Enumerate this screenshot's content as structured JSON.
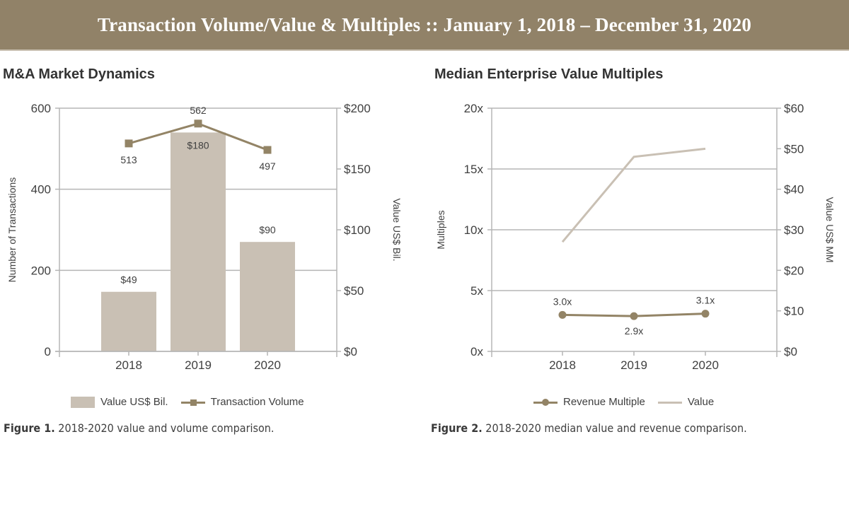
{
  "banner": {
    "title": "Transaction Volume/Value & Multiples  ::  January 1, 2018 – December 31, 2020"
  },
  "colors": {
    "banner": "#918268",
    "primary": "#938466",
    "secondary": "#c9c0b4",
    "grid": "#b5b5b5"
  },
  "chart_data": [
    {
      "type": "bar",
      "title": "M&A Market Dynamics",
      "categories": [
        "2018",
        "2019",
        "2020"
      ],
      "series": [
        {
          "name": "Value US$ Bil.",
          "type": "bar",
          "axis": "right",
          "values": [
            49,
            180,
            90
          ],
          "labels": [
            "$49",
            "$180",
            "$90"
          ]
        },
        {
          "name": "Transaction Volume",
          "type": "line",
          "marker": "square",
          "axis": "left",
          "values": [
            513,
            562,
            497
          ],
          "labels": [
            "513",
            "562",
            "497"
          ]
        }
      ],
      "left_axis": {
        "label": "Number of Transactions",
        "ylim": [
          0,
          600
        ],
        "ticks": [
          "0",
          "200",
          "400",
          "600"
        ],
        "tick_values": [
          0,
          200,
          400,
          600
        ]
      },
      "right_axis": {
        "label": "Value US$ Bil.",
        "ylim": [
          0,
          200
        ],
        "ticks": [
          "$0",
          "$50",
          "$100",
          "$150",
          "$200"
        ],
        "tick_values": [
          0,
          50,
          100,
          150,
          200
        ]
      },
      "grid": true,
      "legend": "bottom",
      "caption_bold": "Figure 1.",
      "caption": " 2018-2020 value and volume comparison."
    },
    {
      "type": "line",
      "title": "Median Enterprise Value Multiples",
      "categories": [
        "2018",
        "2019",
        "2020"
      ],
      "series": [
        {
          "name": "Revenue Multiple",
          "type": "line",
          "marker": "circle",
          "axis": "left",
          "values": [
            3.0,
            2.9,
            3.1
          ],
          "labels": [
            "3.0x",
            "2.9x",
            "3.1x"
          ]
        },
        {
          "name": "Value",
          "type": "line",
          "axis": "right",
          "values": [
            27,
            48,
            50
          ],
          "labels": []
        }
      ],
      "left_axis": {
        "label": "Multiples",
        "ylim": [
          0,
          20
        ],
        "ticks": [
          "0x",
          "5x",
          "10x",
          "15x",
          "20x"
        ],
        "tick_values": [
          0,
          5,
          10,
          15,
          20
        ]
      },
      "right_axis": {
        "label": "Value US$ MM",
        "ylim": [
          0,
          60
        ],
        "ticks": [
          "$0",
          "$10",
          "$20",
          "$30",
          "$40",
          "$50",
          "$60"
        ],
        "tick_values": [
          0,
          10,
          20,
          30,
          40,
          50,
          60
        ]
      },
      "grid": true,
      "legend": "bottom",
      "caption_bold": "Figure 2.",
      "caption": " 2018-2020 median value and revenue comparison."
    }
  ]
}
